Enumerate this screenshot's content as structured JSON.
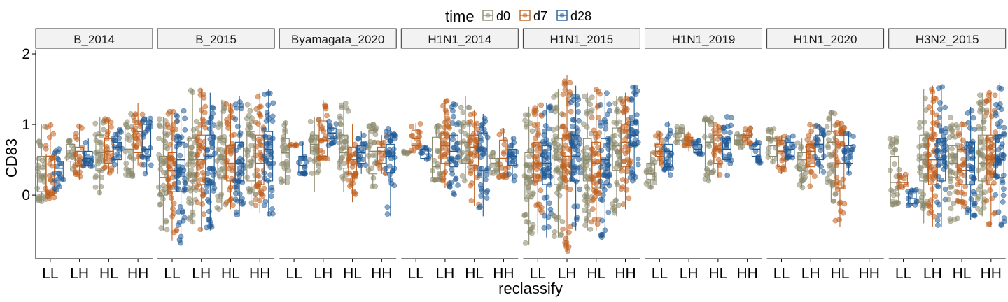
{
  "chart_data": {
    "type": "box",
    "title": "",
    "xlabel": "reclassify",
    "ylabel": "CD83",
    "ylim": [
      -0.9,
      2.05
    ],
    "yticks": [
      0,
      1,
      2
    ],
    "categories": [
      "LL",
      "LH",
      "HL",
      "HH"
    ],
    "legend": {
      "title": "time",
      "position": "top",
      "entries": [
        {
          "label": "d0",
          "color": "#8c8a6e"
        },
        {
          "label": "d7",
          "color": "#c0601f"
        },
        {
          "label": "d28",
          "color": "#1f5a96"
        }
      ]
    },
    "facets": [
      {
        "name": "B_2014",
        "boxes": {
          "LL": {
            "d0": [
              -0.1,
              0.05,
              0.38,
              0.55,
              1.0
            ],
            "d7": [
              -0.05,
              0.0,
              0.55,
              0.58,
              1.03
            ],
            "d28": [
              0.05,
              0.2,
              0.38,
              0.48,
              0.7
            ]
          },
          "LH": {
            "d0": [
              0.35,
              0.48,
              0.58,
              0.72,
              0.78
            ],
            "d7": [
              0.22,
              0.42,
              0.62,
              0.68,
              1.0
            ],
            "d28": [
              0.4,
              0.42,
              0.52,
              0.62,
              0.8
            ]
          },
          "HL": {
            "d0": [
              0.0,
              0.35,
              0.6,
              0.85,
              1.1
            ],
            "d7": [
              0.3,
              0.45,
              0.62,
              0.8,
              1.08
            ],
            "d28": [
              0.3,
              0.5,
              0.68,
              0.75,
              0.95
            ]
          },
          "HH": {
            "d0": [
              0.25,
              0.38,
              0.65,
              0.95,
              1.2
            ],
            "d7": [
              0.42,
              0.6,
              0.9,
              1.0,
              1.3
            ],
            "d28": [
              0.3,
              0.55,
              0.65,
              1.0,
              1.1
            ]
          }
        }
      },
      {
        "name": "B_2015",
        "boxes": {
          "LL": {
            "d0": [
              -0.5,
              0.0,
              0.25,
              0.55,
              1.1
            ],
            "d7": [
              -0.65,
              0.05,
              0.35,
              0.6,
              1.2
            ],
            "d28": [
              -0.7,
              0.05,
              0.5,
              0.75,
              1.2
            ]
          },
          "LH": {
            "d0": [
              -0.4,
              0.2,
              0.5,
              0.8,
              1.5
            ],
            "d7": [
              -0.5,
              0.15,
              0.5,
              0.85,
              1.5
            ],
            "d28": [
              -0.5,
              0.15,
              0.55,
              0.85,
              1.45
            ]
          },
          "HL": {
            "d0": [
              -0.2,
              0.25,
              0.5,
              0.8,
              1.35
            ],
            "d7": [
              -0.2,
              0.2,
              0.45,
              0.7,
              1.3
            ],
            "d28": [
              -0.3,
              0.2,
              0.45,
              0.75,
              1.4
            ]
          },
          "HH": {
            "d0": [
              -0.2,
              0.2,
              0.48,
              0.9,
              1.3
            ],
            "d7": [
              -0.25,
              0.15,
              0.45,
              0.85,
              1.45
            ],
            "d28": [
              -0.3,
              0.2,
              0.65,
              0.9,
              1.5
            ]
          }
        }
      },
      {
        "name": "Byamagata_2020",
        "boxes": {
          "LL": {
            "d0": [
              0.15,
              0.38,
              0.6,
              0.8,
              1.05
            ],
            "d7": [
              0.7,
              0.7,
              0.71,
              0.71,
              0.72
            ],
            "d28": [
              0.3,
              0.32,
              0.42,
              0.55,
              0.75
            ]
          },
          "LH": {
            "d0": [
              0.05,
              0.58,
              0.72,
              0.85,
              1.1
            ],
            "d7": [
              0.5,
              0.55,
              0.78,
              1.05,
              1.35
            ],
            "d28": [
              0.7,
              0.8,
              0.88,
              0.95,
              1.05
            ]
          },
          "HL": {
            "d0": [
              0.05,
              0.38,
              0.6,
              0.85,
              1.3
            ],
            "d7": [
              -0.1,
              0.3,
              0.5,
              0.68,
              1.0
            ],
            "d28": [
              0.3,
              0.45,
              0.6,
              0.7,
              0.9
            ]
          },
          "HH": {
            "d0": [
              0.1,
              0.3,
              0.62,
              0.92,
              1.0
            ],
            "d7": [
              0.3,
              0.45,
              0.62,
              0.68,
              0.85
            ],
            "d28": [
              -0.3,
              0.32,
              0.55,
              0.72,
              0.95
            ]
          }
        }
      },
      {
        "name": "H1N1_2014",
        "boxes": {
          "LL": {
            "d0": [
              0.58,
              0.6,
              0.6,
              0.62,
              0.62
            ],
            "d7": [
              0.62,
              0.7,
              0.8,
              0.92,
              1.02
            ],
            "d28": [
              0.5,
              0.52,
              0.58,
              0.65,
              0.7
            ]
          },
          "LH": {
            "d0": [
              0.2,
              0.25,
              0.4,
              0.82,
              1.0
            ],
            "d7": [
              0.1,
              0.45,
              0.7,
              0.88,
              1.35
            ],
            "d28": [
              -0.05,
              0.4,
              0.62,
              0.85,
              1.3
            ]
          },
          "HL": {
            "d0": [
              0.2,
              0.45,
              0.75,
              1.0,
              1.4
            ],
            "d7": [
              -0.15,
              0.42,
              0.68,
              0.85,
              1.2
            ],
            "d28": [
              -0.3,
              0.35,
              0.58,
              0.88,
              1.15
            ]
          },
          "HH": {
            "d0": [
              0.3,
              0.35,
              0.45,
              0.52,
              0.6
            ],
            "d7": [
              0.25,
              0.3,
              0.52,
              0.78,
              0.95
            ],
            "d28": [
              0.2,
              0.42,
              0.55,
              0.65,
              0.82
            ]
          }
        }
      },
      {
        "name": "H1N1_2015",
        "boxes": {
          "LL": {
            "d0": [
              -0.7,
              -0.05,
              0.25,
              0.6,
              1.25
            ],
            "d7": [
              -0.55,
              0.2,
              0.45,
              0.75,
              1.3
            ],
            "d28": [
              -0.6,
              0.15,
              0.45,
              0.7,
              1.3
            ]
          },
          "LH": {
            "d0": [
              -0.6,
              0.15,
              0.5,
              0.8,
              1.5
            ],
            "d7": [
              -0.8,
              0.2,
              0.55,
              0.85,
              1.7
            ],
            "d28": [
              -0.5,
              0.2,
              0.55,
              0.85,
              1.55
            ]
          },
          "HL": {
            "d0": [
              -0.5,
              0.2,
              0.5,
              0.8,
              1.45
            ],
            "d7": [
              -0.5,
              0.1,
              0.45,
              0.75,
              1.5
            ],
            "d28": [
              -0.6,
              0.15,
              0.5,
              0.8,
              1.45
            ]
          },
          "HH": {
            "d0": [
              -0.3,
              0.35,
              0.7,
              0.95,
              1.4
            ],
            "d7": [
              -0.2,
              0.4,
              0.75,
              1.0,
              1.45
            ],
            "d28": [
              0.2,
              0.7,
              0.85,
              1.05,
              1.55
            ]
          }
        }
      },
      {
        "name": "H1N1_2019",
        "boxes": {
          "LL": {
            "d0": [
              0.1,
              0.22,
              0.3,
              0.45,
              0.62
            ],
            "d7": [
              0.42,
              0.55,
              0.62,
              0.72,
              0.9
            ],
            "d28": [
              0.28,
              0.4,
              0.62,
              0.72,
              1.05
            ]
          },
          "LH": {
            "d0": [
              0.65,
              0.78,
              0.88,
              0.95,
              0.98
            ],
            "d7": [
              0.62,
              0.7,
              0.78,
              0.82,
              0.9
            ],
            "d28": [
              0.55,
              0.6,
              0.65,
              0.72,
              0.8
            ]
          },
          "HL": {
            "d0": [
              0.2,
              0.35,
              0.75,
              1.05,
              1.1
            ],
            "d7": [
              0.25,
              0.45,
              0.65,
              0.85,
              1.0
            ],
            "d28": [
              0.25,
              0.5,
              0.65,
              0.8,
              1.15
            ]
          },
          "HH": {
            "d0": [
              0.65,
              0.72,
              0.78,
              0.85,
              0.9
            ],
            "d7": [
              0.7,
              0.82,
              0.85,
              0.9,
              0.95
            ],
            "d28": [
              0.45,
              0.55,
              0.65,
              0.72,
              0.8
            ]
          }
        }
      },
      {
        "name": "H1N1_2020",
        "boxes": {
          "LL": {
            "d0": [
              0.45,
              0.55,
              0.7,
              0.8,
              0.95
            ],
            "d7": [
              0.3,
              0.4,
              0.62,
              0.78,
              0.85
            ],
            "d28": [
              0.5,
              0.55,
              0.65,
              0.75,
              0.85
            ]
          },
          "LH": {
            "d0": [
              0.1,
              0.35,
              0.5,
              0.6,
              0.8
            ],
            "d7": [
              0.1,
              0.4,
              0.62,
              0.72,
              1.0
            ],
            "d28": [
              0.3,
              0.5,
              0.72,
              0.85,
              1.0
            ]
          },
          "HL": {
            "d0": [
              -0.1,
              0.2,
              0.75,
              0.9,
              1.2
            ],
            "d7": [
              -0.45,
              0.1,
              0.45,
              0.85,
              1.05
            ],
            "d28": [
              0.3,
              0.45,
              0.58,
              0.7,
              0.9
            ]
          }
        }
      },
      {
        "name": "H3N2_2015",
        "boxes": {
          "LL": {
            "d0": [
              -0.15,
              -0.1,
              0.18,
              0.55,
              0.85
            ],
            "d7": [
              0.1,
              0.15,
              0.18,
              0.28,
              0.3
            ],
            "d28": [
              -0.15,
              -0.12,
              -0.05,
              0.05,
              0.1
            ]
          },
          "LH": {
            "d0": [
              -0.4,
              0.2,
              0.5,
              0.85,
              1.5
            ],
            "d7": [
              -0.45,
              0.15,
              0.5,
              0.8,
              1.55
            ],
            "d28": [
              -0.45,
              0.2,
              0.5,
              0.8,
              1.55
            ]
          },
          "HL": {
            "d0": [
              -0.4,
              0.25,
              0.45,
              0.7,
              1.1
            ],
            "d7": [
              -0.2,
              0.15,
              0.35,
              0.65,
              1.05
            ],
            "d28": [
              -0.35,
              0.15,
              0.35,
              0.75,
              1.25
            ]
          },
          "HH": {
            "d0": [
              -0.3,
              0.2,
              0.45,
              0.85,
              1.45
            ],
            "d7": [
              -0.45,
              0.15,
              0.5,
              0.85,
              1.45
            ],
            "d28": [
              -0.45,
              0.25,
              0.5,
              0.85,
              1.6
            ]
          }
        }
      }
    ]
  }
}
